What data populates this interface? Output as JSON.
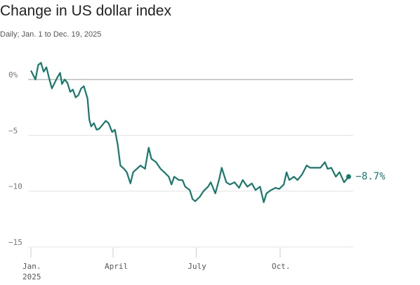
{
  "chart_data": {
    "type": "line",
    "title": "Change in US dollar index",
    "subtitle": "Daily; Jan. 1 to Dec. 19, 2025",
    "x": [
      1,
      6,
      9,
      12,
      15,
      18,
      21,
      24,
      27,
      30,
      33,
      35,
      38,
      41,
      44,
      47,
      50,
      53,
      56,
      59,
      63,
      65,
      67,
      70,
      73,
      76,
      79,
      83,
      86,
      90,
      93,
      96,
      99,
      103,
      106,
      110,
      113,
      117,
      121,
      126,
      130,
      133,
      138,
      143,
      147,
      152,
      155,
      158,
      163,
      167,
      170,
      175,
      178,
      181,
      186,
      190,
      195,
      198,
      203,
      207,
      210,
      215,
      219,
      224,
      229,
      233,
      238,
      243,
      247,
      252,
      256,
      259,
      264,
      269,
      273,
      278,
      281,
      284,
      289,
      293,
      298,
      303,
      307,
      312,
      318,
      323,
      326,
      330,
      335,
      339,
      344,
      349
    ],
    "values": [
      0.8,
      0.0,
      1.3,
      1.5,
      0.7,
      1.1,
      0.1,
      -0.8,
      -0.3,
      0.2,
      0.6,
      -0.4,
      0.0,
      -0.3,
      -1.1,
      -0.9,
      -1.6,
      -1.4,
      -0.8,
      -0.6,
      -1.7,
      -3.6,
      -4.2,
      -3.9,
      -4.5,
      -4.4,
      -4.1,
      -3.7,
      -3.9,
      -4.7,
      -4.5,
      -5.8,
      -7.7,
      -8.0,
      -8.3,
      -9.3,
      -8.3,
      -8.0,
      -7.7,
      -8.0,
      -6.1,
      -7.1,
      -7.4,
      -8.0,
      -8.3,
      -8.7,
      -9.4,
      -8.7,
      -9.0,
      -9.0,
      -9.6,
      -9.9,
      -10.7,
      -10.9,
      -10.5,
      -10.0,
      -9.6,
      -9.2,
      -10.2,
      -9.0,
      -7.9,
      -9.2,
      -9.4,
      -9.2,
      -9.7,
      -9.0,
      -9.6,
      -9.3,
      -9.9,
      -9.6,
      -11.0,
      -10.2,
      -9.9,
      -9.7,
      -9.8,
      -9.4,
      -8.3,
      -9.0,
      -8.7,
      -9.0,
      -8.5,
      -7.7,
      -7.9,
      -7.9,
      -7.9,
      -7.4,
      -8.0,
      -7.9,
      -8.7,
      -8.3,
      -9.2,
      -8.7
    ],
    "value_labels": [
      null,
      null,
      null,
      null,
      null,
      null,
      null,
      null,
      null,
      null,
      null,
      null,
      null,
      null,
      null,
      null,
      null,
      null,
      null,
      null,
      null,
      null,
      null,
      null,
      null,
      null,
      null,
      null,
      null,
      null,
      null,
      null,
      null,
      null,
      null,
      null,
      null,
      null,
      null,
      null,
      null,
      null,
      null,
      null,
      null,
      null,
      null,
      null,
      null,
      null,
      null,
      null,
      null,
      null,
      null,
      null,
      null,
      null,
      null,
      null,
      null,
      null,
      null,
      null,
      null,
      null,
      null,
      null,
      null,
      null,
      null,
      null,
      null,
      null,
      null,
      null,
      null,
      null,
      null,
      null,
      null,
      null,
      null,
      null,
      null,
      null,
      null,
      null,
      null,
      null,
      null,
      "−8.7%"
    ],
    "color": "#157a6b",
    "xlim": [
      1,
      353
    ],
    "xticks": [
      {
        "value": 1,
        "label": "Jan. 2025"
      },
      {
        "value": 91,
        "label": "April"
      },
      {
        "value": 182,
        "label": "July"
      },
      {
        "value": 274,
        "label": "Oct."
      }
    ],
    "ylim": [
      -15,
      2
    ],
    "yticks": [
      {
        "value": 0,
        "label": "0%"
      },
      {
        "value": -5,
        "label": "−5"
      },
      {
        "value": -10,
        "label": "−10"
      },
      {
        "value": -15,
        "label": "−15"
      }
    ],
    "grid": true
  }
}
